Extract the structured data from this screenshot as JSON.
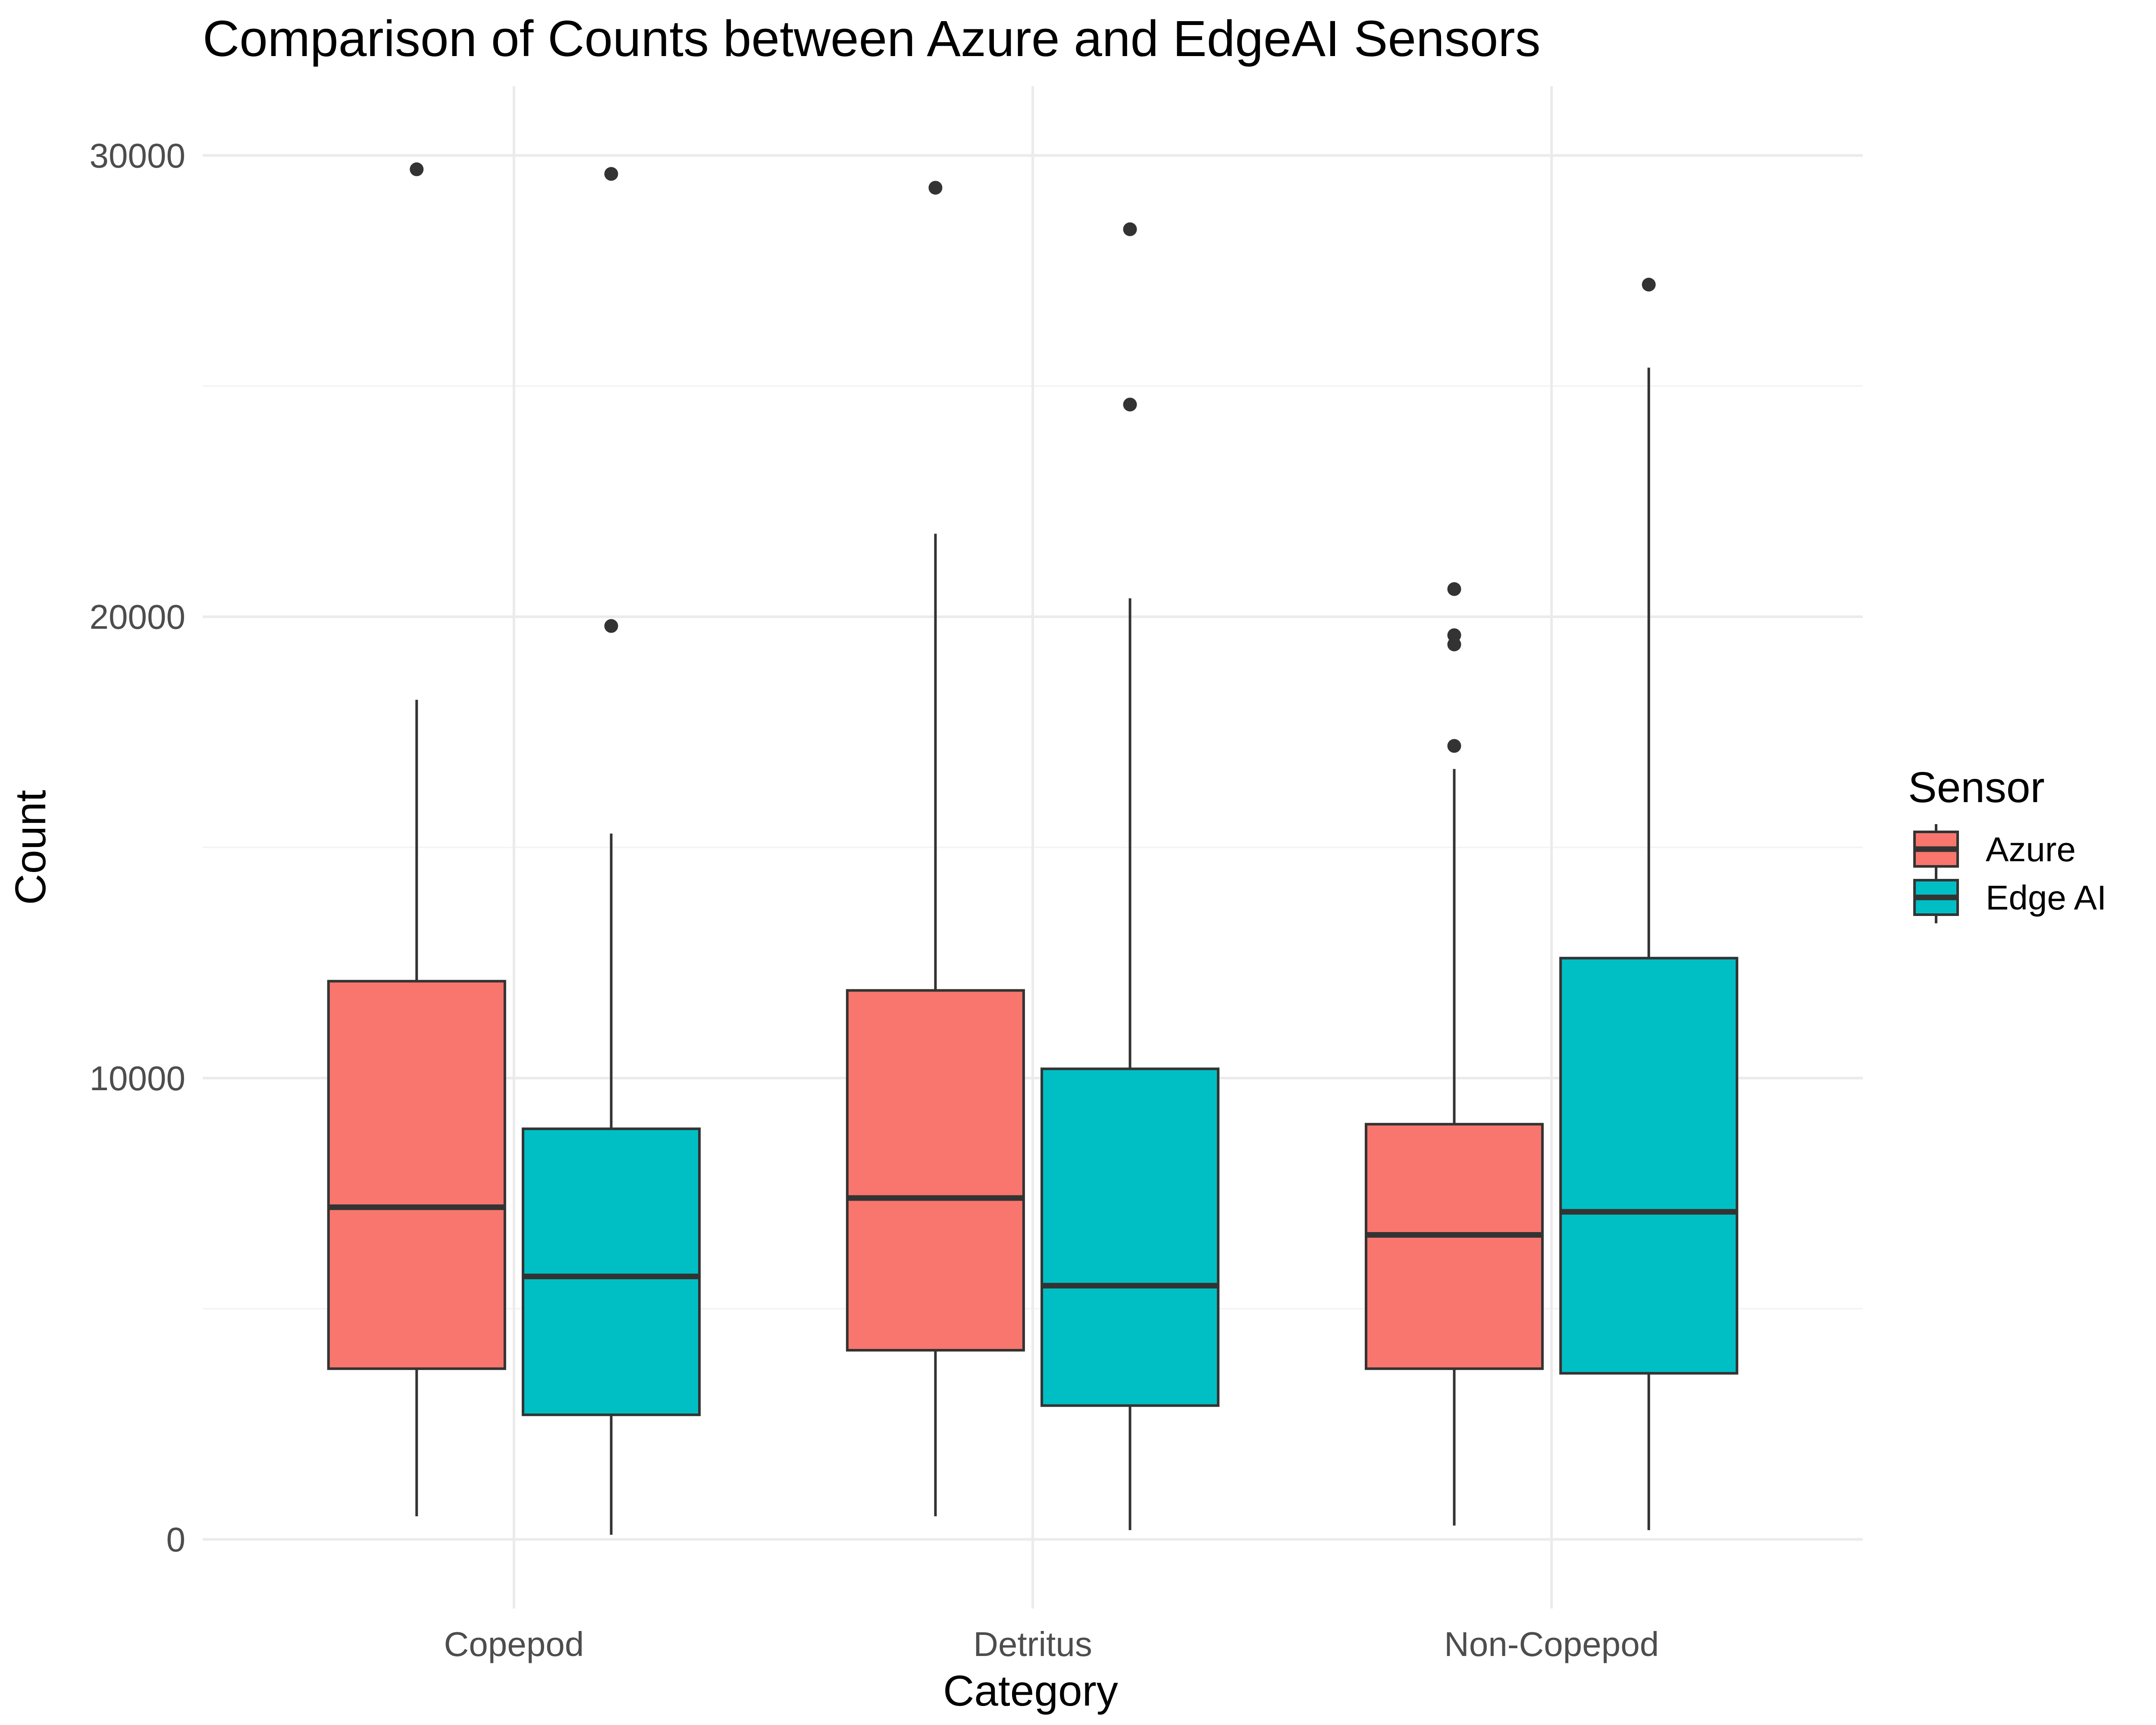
{
  "chart_data": {
    "type": "boxplot",
    "title": "Comparison of Counts between Azure and EdgeAI Sensors",
    "xlabel": "Category",
    "ylabel": "Count",
    "categories": [
      "Copepod",
      "Detritus",
      "Non-Copepod"
    ],
    "ylim": [
      -1500,
      31500
    ],
    "yticks": [
      0,
      10000,
      20000,
      30000
    ],
    "ytick_labels": [
      "0",
      "10000",
      "20000",
      "30000"
    ],
    "grid": true,
    "legend": {
      "title": "Sensor",
      "position": "right"
    },
    "series": [
      {
        "name": "Azure",
        "color": "#F8766D",
        "boxes": [
          {
            "category": "Copepod",
            "whisker_low": 500,
            "q1": 3700,
            "median": 7200,
            "q3": 12100,
            "whisker_high": 18200,
            "outliers": [
              29700
            ]
          },
          {
            "category": "Detritus",
            "whisker_low": 500,
            "q1": 4100,
            "median": 7400,
            "q3": 11900,
            "whisker_high": 21800,
            "outliers": [
              29300
            ]
          },
          {
            "category": "Non-Copepod",
            "whisker_low": 300,
            "q1": 3700,
            "median": 6600,
            "q3": 9000,
            "whisker_high": 16700,
            "outliers": [
              17200,
              19400,
              19600,
              20600
            ]
          }
        ]
      },
      {
        "name": "Edge AI",
        "color": "#00BFC4",
        "boxes": [
          {
            "category": "Copepod",
            "whisker_low": 100,
            "q1": 2700,
            "median": 5700,
            "q3": 8900,
            "whisker_high": 15300,
            "outliers": [
              19800,
              29600
            ]
          },
          {
            "category": "Detritus",
            "whisker_low": 200,
            "q1": 2900,
            "median": 5500,
            "q3": 10200,
            "whisker_high": 20400,
            "outliers": [
              24600,
              28400
            ]
          },
          {
            "category": "Non-Copepod",
            "whisker_low": 200,
            "q1": 3600,
            "median": 7100,
            "q3": 12600,
            "whisker_high": 25400,
            "outliers": [
              27200
            ]
          }
        ]
      }
    ]
  }
}
